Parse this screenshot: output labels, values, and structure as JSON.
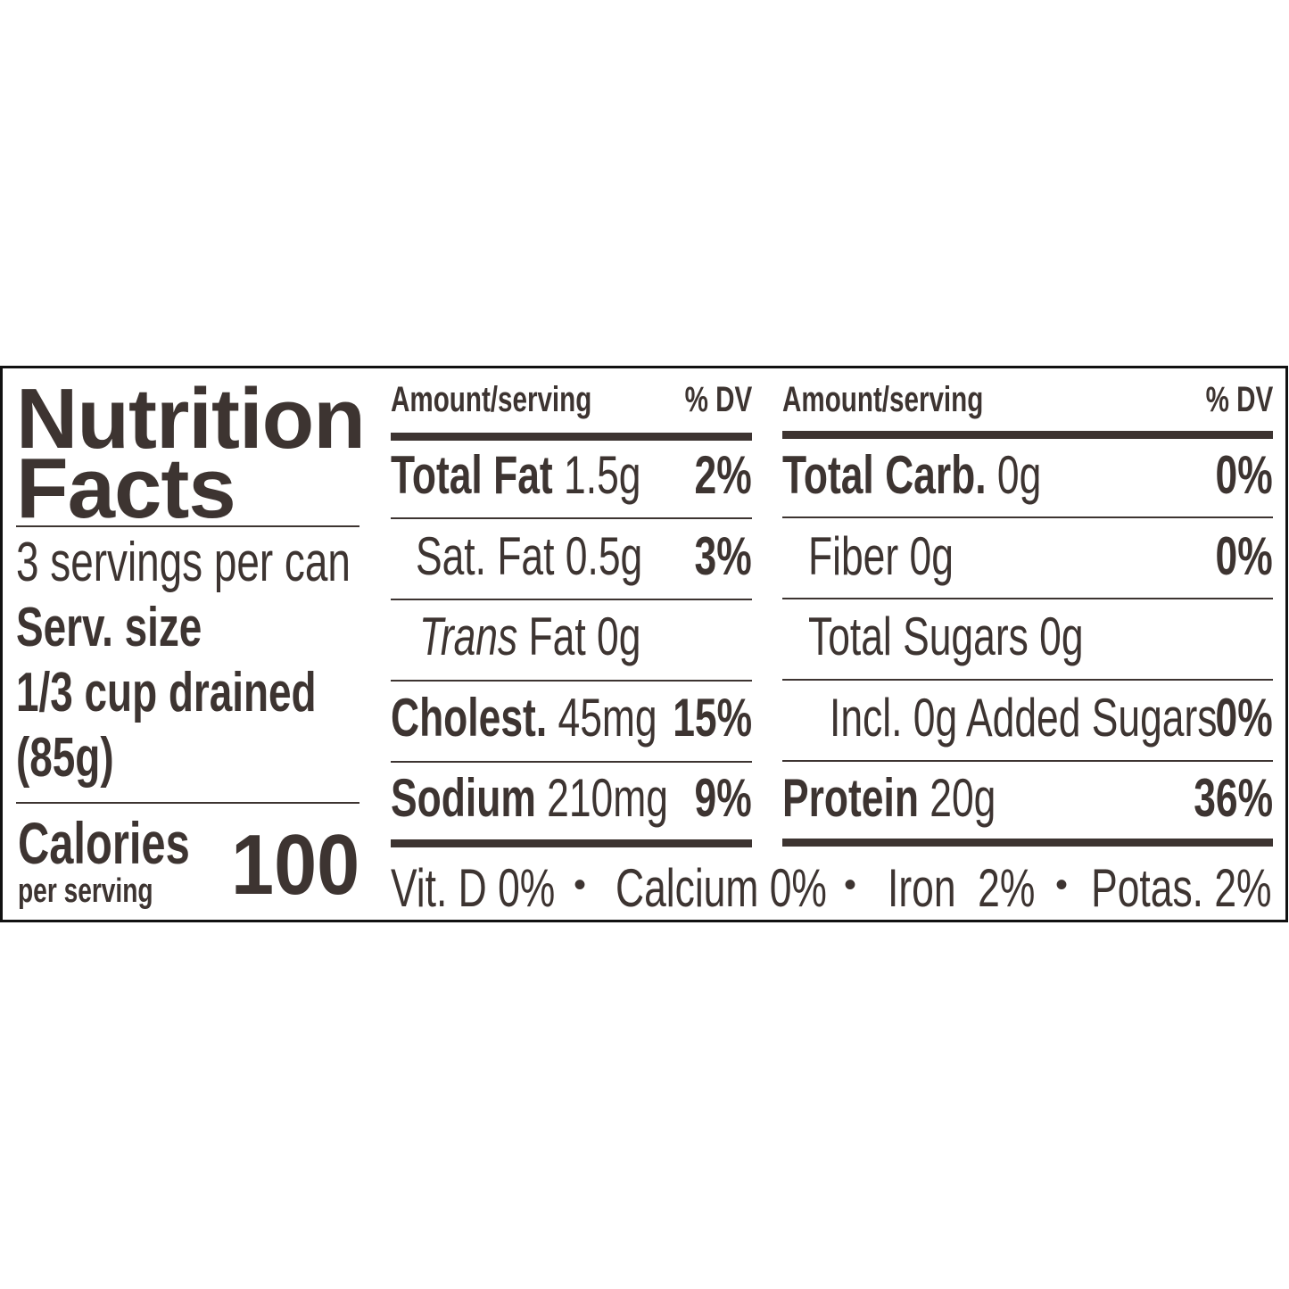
{
  "title_line1": "Nutrition",
  "title_line2": "Facts",
  "servings_per_container": "3 servings per can",
  "serving_size_label": "Serv. size",
  "serving_size_line1": "1/3 cup drained",
  "serving_size_line2": "(85g)",
  "calories_label": "Calories",
  "calories_sub": "per serving",
  "calories_value": "100",
  "left_table": {
    "header_amount": "Amount/serving",
    "header_dv": "% DV",
    "rows": [
      {
        "label": "Total Fat",
        "amount": "1.5g",
        "dv": "2%"
      },
      {
        "label": "Sat. Fat",
        "amount": "0.5g",
        "dv": "3%"
      },
      {
        "label": "Trans",
        "amount": "Fat 0g",
        "dv": ""
      },
      {
        "label": "Cholest.",
        "amount": "45mg",
        "dv": "15%"
      },
      {
        "label": "Sodium",
        "amount": "210mg",
        "dv": "9%"
      }
    ]
  },
  "right_table": {
    "header_amount": "Amount/serving",
    "header_dv": "% DV",
    "rows": [
      {
        "label": "Total Carb.",
        "amount": "0g",
        "dv": "0%"
      },
      {
        "label": "Fiber",
        "amount": "0g",
        "dv": "0%"
      },
      {
        "label": "Total Sugars",
        "amount": "0g",
        "dv": ""
      },
      {
        "label": "Incl. 0g Added Sugars",
        "amount": "",
        "dv": "0%"
      },
      {
        "label": "Protein",
        "amount": "20g",
        "dv": "36%"
      }
    ]
  },
  "micronutrients": {
    "vitd": "Vit. D 0%",
    "calcium": "Calcium 0%",
    "iron": "Iron  2%",
    "potassium": "Potas. 2%",
    "separator": "•"
  },
  "colors": {
    "ink": "#3d3431",
    "border": "#111111"
  }
}
